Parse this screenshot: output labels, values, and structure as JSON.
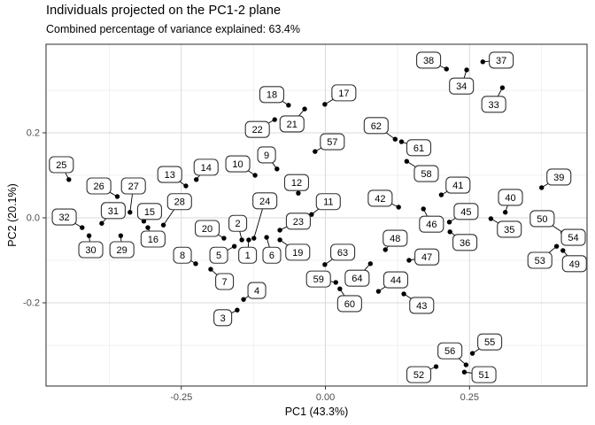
{
  "header": {
    "title": "Individuals projected on the PC1-2 plane",
    "subtitle": "Combined percentage of variance explained: 63.4%"
  },
  "colors": {
    "point": "#000000",
    "leader": "#000000",
    "label_bg": "#ffffff",
    "label_border": "#333333",
    "label_text": "#000000",
    "grid_major": "#d9d9d9",
    "grid_minor": "#ededed",
    "panel_border": "#4d4d4d",
    "panel_bg": "#ffffff",
    "axis_text": "#4d4d4d",
    "tick_mark": "#333333"
  },
  "chart_data": {
    "type": "scatter",
    "title": "Individuals projected on the PC1-2 plane",
    "subtitle": "Combined percentage of variance explained: 63.4%",
    "xlabel": "PC1 (43.3%)",
    "ylabel": "PC2 (20.1%)",
    "xlim": [
      -0.4846,
      0.4538
    ],
    "ylim": [
      -0.3958,
      0.4083
    ],
    "grid": true,
    "legend": "none",
    "x_ticks": [
      {
        "v": -0.25,
        "label": "-0.25"
      },
      {
        "v": 0.0,
        "label": "0.00"
      },
      {
        "v": 0.25,
        "label": "0.25"
      }
    ],
    "y_ticks": [
      {
        "v": 0.2,
        "label": "0.2"
      },
      {
        "v": 0.0,
        "label": "0.0"
      },
      {
        "v": -0.2,
        "label": "-0.2"
      }
    ],
    "x_minor": [
      -0.375,
      -0.125,
      0.125,
      0.375
    ],
    "y_minor": [
      0.3,
      0.1,
      -0.1,
      -0.3
    ],
    "points": [
      {
        "id": "1",
        "x": -0.133,
        "y": -0.052,
        "lx": -0.135,
        "ly": -0.088
      },
      {
        "id": "2",
        "x": -0.145,
        "y": -0.052,
        "lx": -0.152,
        "ly": -0.013
      },
      {
        "id": "3",
        "x": -0.153,
        "y": -0.217,
        "lx": -0.178,
        "ly": -0.235
      },
      {
        "id": "4",
        "x": -0.142,
        "y": -0.192,
        "lx": -0.119,
        "ly": -0.171
      },
      {
        "id": "5",
        "x": -0.158,
        "y": -0.067,
        "lx": -0.185,
        "ly": -0.088
      },
      {
        "id": "6",
        "x": -0.102,
        "y": -0.046,
        "lx": -0.093,
        "ly": -0.088
      },
      {
        "id": "7",
        "x": -0.199,
        "y": -0.121,
        "lx": -0.175,
        "ly": -0.15
      },
      {
        "id": "8",
        "x": -0.225,
        "y": -0.108,
        "lx": -0.248,
        "ly": -0.088
      },
      {
        "id": "9",
        "x": -0.084,
        "y": 0.115,
        "lx": -0.102,
        "ly": 0.148
      },
      {
        "id": "10",
        "x": -0.122,
        "y": 0.1,
        "lx": -0.152,
        "ly": 0.127
      },
      {
        "id": "11",
        "x": -0.024,
        "y": 0.008,
        "lx": 0.005,
        "ly": 0.038
      },
      {
        "id": "12",
        "x": -0.047,
        "y": 0.058,
        "lx": -0.05,
        "ly": 0.083
      },
      {
        "id": "13",
        "x": -0.242,
        "y": 0.075,
        "lx": -0.27,
        "ly": 0.102
      },
      {
        "id": "14",
        "x": -0.224,
        "y": 0.09,
        "lx": -0.207,
        "ly": 0.119
      },
      {
        "id": "15",
        "x": -0.315,
        "y": -0.008,
        "lx": -0.305,
        "ly": 0.015
      },
      {
        "id": "16",
        "x": -0.308,
        "y": -0.023,
        "lx": -0.299,
        "ly": -0.05
      },
      {
        "id": "17",
        "x": -0.001,
        "y": 0.267,
        "lx": 0.032,
        "ly": 0.294
      },
      {
        "id": "18",
        "x": -0.064,
        "y": 0.265,
        "lx": -0.093,
        "ly": 0.29
      },
      {
        "id": "19",
        "x": -0.079,
        "y": -0.052,
        "lx": -0.048,
        "ly": -0.081
      },
      {
        "id": "20",
        "x": -0.176,
        "y": -0.048,
        "lx": -0.205,
        "ly": -0.025
      },
      {
        "id": "21",
        "x": -0.036,
        "y": 0.256,
        "lx": -0.058,
        "ly": 0.221
      },
      {
        "id": "22",
        "x": -0.088,
        "y": 0.231,
        "lx": -0.118,
        "ly": 0.208
      },
      {
        "id": "23",
        "x": -0.079,
        "y": -0.029,
        "lx": -0.047,
        "ly": -0.008
      },
      {
        "id": "24",
        "x": -0.124,
        "y": -0.048,
        "lx": -0.105,
        "ly": 0.04
      },
      {
        "id": "25",
        "x": -0.445,
        "y": 0.09,
        "lx": -0.458,
        "ly": 0.125
      },
      {
        "id": "26",
        "x": -0.361,
        "y": 0.05,
        "lx": -0.393,
        "ly": 0.075
      },
      {
        "id": "27",
        "x": -0.339,
        "y": 0.013,
        "lx": -0.333,
        "ly": 0.075
      },
      {
        "id": "28",
        "x": -0.281,
        "y": -0.017,
        "lx": -0.253,
        "ly": 0.038
      },
      {
        "id": "29",
        "x": -0.355,
        "y": -0.042,
        "lx": -0.353,
        "ly": -0.075
      },
      {
        "id": "30",
        "x": -0.41,
        "y": -0.042,
        "lx": -0.407,
        "ly": -0.075
      },
      {
        "id": "31",
        "x": -0.388,
        "y": -0.013,
        "lx": -0.368,
        "ly": 0.017
      },
      {
        "id": "32",
        "x": -0.422,
        "y": -0.023,
        "lx": -0.453,
        "ly": 0.002
      },
      {
        "id": "33",
        "x": 0.307,
        "y": 0.306,
        "lx": 0.292,
        "ly": 0.267
      },
      {
        "id": "34",
        "x": 0.245,
        "y": 0.348,
        "lx": 0.236,
        "ly": 0.31
      },
      {
        "id": "35",
        "x": 0.287,
        "y": -0.002,
        "lx": 0.319,
        "ly": -0.027
      },
      {
        "id": "36",
        "x": 0.216,
        "y": -0.033,
        "lx": 0.242,
        "ly": -0.058
      },
      {
        "id": "37",
        "x": 0.273,
        "y": 0.367,
        "lx": 0.305,
        "ly": 0.371
      },
      {
        "id": "38",
        "x": 0.21,
        "y": 0.35,
        "lx": 0.179,
        "ly": 0.371
      },
      {
        "id": "39",
        "x": 0.375,
        "y": 0.071,
        "lx": 0.405,
        "ly": 0.096
      },
      {
        "id": "40",
        "x": 0.312,
        "y": 0.013,
        "lx": 0.321,
        "ly": 0.048
      },
      {
        "id": "41",
        "x": 0.201,
        "y": 0.054,
        "lx": 0.23,
        "ly": 0.077
      },
      {
        "id": "42",
        "x": 0.127,
        "y": 0.025,
        "lx": 0.095,
        "ly": 0.046
      },
      {
        "id": "43",
        "x": 0.136,
        "y": -0.179,
        "lx": 0.167,
        "ly": -0.206
      },
      {
        "id": "44",
        "x": 0.092,
        "y": -0.173,
        "lx": 0.122,
        "ly": -0.146
      },
      {
        "id": "45",
        "x": 0.215,
        "y": -0.01,
        "lx": 0.244,
        "ly": 0.015
      },
      {
        "id": "46",
        "x": 0.17,
        "y": 0.021,
        "lx": 0.184,
        "ly": -0.015
      },
      {
        "id": "47",
        "x": 0.145,
        "y": -0.1,
        "lx": 0.176,
        "ly": -0.092
      },
      {
        "id": "48",
        "x": 0.104,
        "y": -0.075,
        "lx": 0.121,
        "ly": -0.048
      },
      {
        "id": "49",
        "x": 0.412,
        "y": -0.077,
        "lx": 0.432,
        "ly": -0.108
      },
      {
        "id": "50",
        "x": 0.412,
        "y": -0.035,
        "lx": 0.376,
        "ly": -0.002
      },
      {
        "id": "51",
        "x": 0.241,
        "y": -0.363,
        "lx": 0.275,
        "ly": -0.369
      },
      {
        "id": "52",
        "x": 0.192,
        "y": -0.35,
        "lx": 0.162,
        "ly": -0.369
      },
      {
        "id": "53",
        "x": 0.401,
        "y": -0.067,
        "lx": 0.372,
        "ly": -0.1
      },
      {
        "id": "54",
        "x": 0.413,
        "y": -0.038,
        "lx": 0.43,
        "ly": -0.046
      },
      {
        "id": "55",
        "x": 0.255,
        "y": -0.319,
        "lx": 0.285,
        "ly": -0.292
      },
      {
        "id": "56",
        "x": 0.244,
        "y": -0.346,
        "lx": 0.216,
        "ly": -0.313
      },
      {
        "id": "57",
        "x": -0.018,
        "y": 0.156,
        "lx": 0.012,
        "ly": 0.179
      },
      {
        "id": "58",
        "x": 0.141,
        "y": 0.133,
        "lx": 0.175,
        "ly": 0.104
      },
      {
        "id": "59",
        "x": 0.018,
        "y": -0.152,
        "lx": -0.012,
        "ly": -0.144
      },
      {
        "id": "60",
        "x": 0.025,
        "y": -0.167,
        "lx": 0.042,
        "ly": -0.202
      },
      {
        "id": "61",
        "x": 0.132,
        "y": 0.179,
        "lx": 0.162,
        "ly": 0.165
      },
      {
        "id": "62",
        "x": 0.121,
        "y": 0.185,
        "lx": 0.088,
        "ly": 0.217
      },
      {
        "id": "63",
        "x": -0.001,
        "y": -0.11,
        "lx": 0.03,
        "ly": -0.081
      },
      {
        "id": "64",
        "x": 0.078,
        "y": -0.108,
        "lx": 0.055,
        "ly": -0.142
      }
    ]
  }
}
